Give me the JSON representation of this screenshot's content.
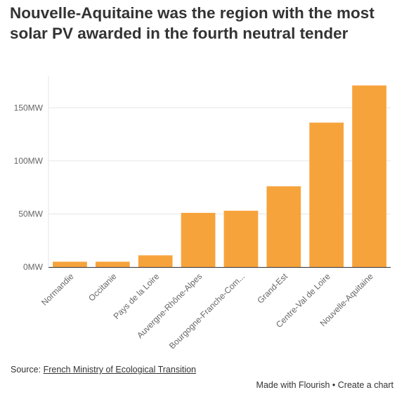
{
  "title": "Nouvelle-Aquitaine was the region with the most solar PV awarded in the fourth neutral tender",
  "source": {
    "prefix": "Source: ",
    "link": "French Ministry of Ecological Transition"
  },
  "footer": {
    "made_with": "Made with Flourish",
    "separator": " • ",
    "create": "Create a chart"
  },
  "colors": {
    "bar": "#f7a33c",
    "grid": "#e6e6e6",
    "axis": "#333333"
  },
  "chart_data": {
    "type": "bar",
    "categories": [
      "Normandie",
      "Occitanie",
      "Pays de la Loire",
      "Auvergne-Rhône-Alpes",
      "Bourgogne-Franche-Com...",
      "Grand-Est",
      "Centre-Val de Loire",
      "Nouvelle-Aquitaine"
    ],
    "values": [
      5,
      5,
      11,
      51,
      53,
      76,
      136,
      171
    ],
    "y_ticks": [
      0,
      50,
      100,
      150
    ],
    "y_tick_labels": [
      "0MW",
      "50MW",
      "100MW",
      "150MW"
    ],
    "ylim": [
      0,
      180
    ],
    "grid": true
  }
}
